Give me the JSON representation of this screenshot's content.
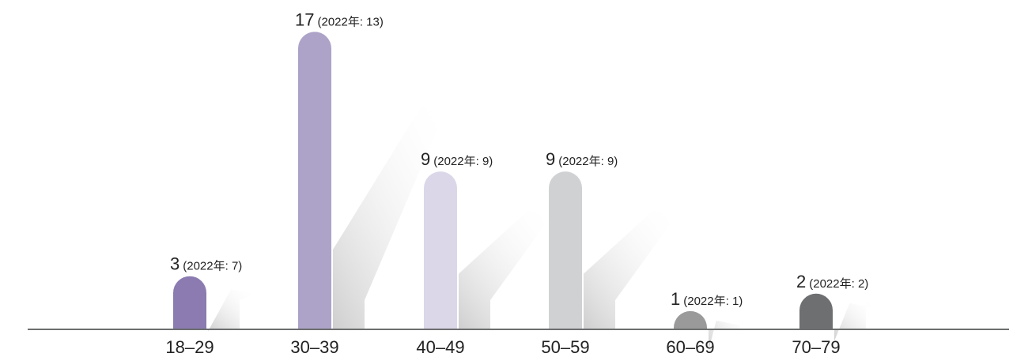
{
  "chart_data": {
    "type": "bar",
    "title": "",
    "xlabel": "",
    "ylabel": "",
    "categories": [
      "18–29",
      "30–39",
      "40–49",
      "50–59",
      "60–69",
      "70–79"
    ],
    "values": [
      3,
      17,
      9,
      9,
      1,
      2
    ],
    "previous_labels": [
      "(2022年: 7)",
      "(2022年: 13)",
      "(2022年: 9)",
      "(2022年: 9)",
      "(2022年: 1)",
      "(2022年: 2)"
    ],
    "value_labels": [
      "3",
      "17",
      "9",
      "9",
      "1",
      "2"
    ],
    "colors": [
      "#8b7bb0",
      "#ada3c8",
      "#dbd7e9",
      "#d0d1d3",
      "#9a9a9a",
      "#6e6f71"
    ],
    "ylim": [
      0,
      18
    ],
    "grid": false
  }
}
